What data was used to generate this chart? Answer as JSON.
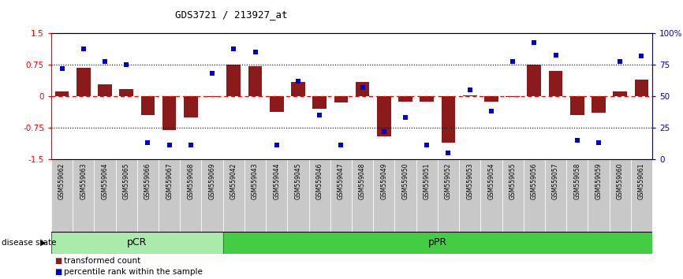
{
  "title": "GDS3721 / 213927_at",
  "samples": [
    "GSM559062",
    "GSM559063",
    "GSM559064",
    "GSM559065",
    "GSM559066",
    "GSM559067",
    "GSM559068",
    "GSM559069",
    "GSM559042",
    "GSM559043",
    "GSM559044",
    "GSM559045",
    "GSM559046",
    "GSM559047",
    "GSM559048",
    "GSM559049",
    "GSM559050",
    "GSM559051",
    "GSM559052",
    "GSM559053",
    "GSM559054",
    "GSM559055",
    "GSM559056",
    "GSM559057",
    "GSM559058",
    "GSM559059",
    "GSM559060",
    "GSM559061"
  ],
  "bar_values": [
    0.12,
    0.68,
    0.28,
    0.18,
    -0.45,
    -0.8,
    -0.5,
    -0.02,
    0.75,
    0.72,
    -0.38,
    0.35,
    -0.3,
    -0.15,
    0.35,
    -0.95,
    -0.12,
    -0.12,
    -1.1,
    0.02,
    -0.12,
    -0.02,
    0.75,
    0.6,
    -0.45,
    -0.4,
    0.12,
    0.4
  ],
  "percentile_values": [
    72,
    88,
    78,
    75,
    13,
    11,
    11,
    68,
    88,
    85,
    11,
    62,
    35,
    11,
    57,
    22,
    33,
    11,
    5,
    55,
    38,
    78,
    93,
    83,
    15,
    13,
    78,
    82
  ],
  "pCR_range": [
    0,
    7
  ],
  "pPR_range": [
    8,
    27
  ],
  "ylim": [
    -1.5,
    1.5
  ],
  "yticks_left": [
    -1.5,
    -0.75,
    0,
    0.75,
    1.5
  ],
  "yticks_right": [
    0,
    25,
    50,
    75,
    100
  ],
  "bar_color": "#8B1A1A",
  "dot_color": "#0000CC",
  "pCR_color": "#AAFFAA",
  "pPR_color": "#44CC44",
  "legend_bar_label": "transformed count",
  "legend_dot_label": "percentile rank within the sample",
  "disease_state_label": "disease state",
  "pCR_label": "pCR",
  "pPR_label": "pPR"
}
